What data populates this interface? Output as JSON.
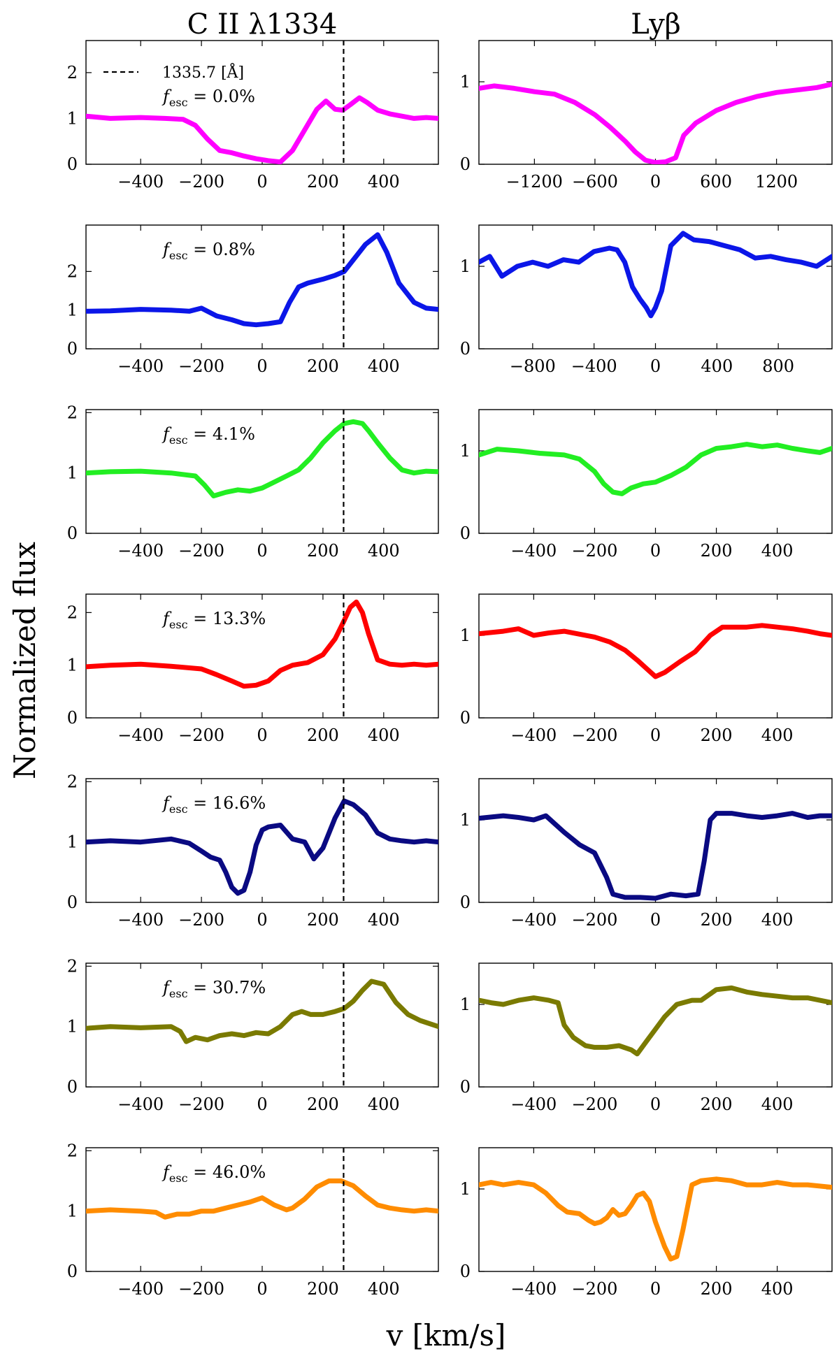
{
  "figure": {
    "left_column_title": "C II λ1334",
    "right_column_title": "Lyβ",
    "ylabel": "Normalized flux",
    "xlabel": "v [km/s]",
    "reference_line": {
      "velocity": 268,
      "legend_label": "1335.7 [Å]"
    },
    "fesc_prefix": "f",
    "fesc_subscript": "esc"
  },
  "chart_data": [
    {
      "type": "line",
      "panel": "C II λ1334",
      "fesc": "0.0%",
      "color": "#ff00ff",
      "xlim": [
        -580,
        580
      ],
      "ylim": [
        0,
        2.7
      ],
      "xticks": [
        -400,
        -200,
        0,
        200,
        400
      ],
      "yticks": [
        0,
        1,
        2
      ],
      "x": [
        -580,
        -500,
        -400,
        -320,
        -260,
        -220,
        -180,
        -140,
        -100,
        -60,
        -20,
        20,
        60,
        100,
        140,
        180,
        210,
        240,
        265,
        290,
        320,
        345,
        380,
        420,
        460,
        500,
        540,
        580
      ],
      "y": [
        1.05,
        1.0,
        1.02,
        1.0,
        0.98,
        0.85,
        0.55,
        0.3,
        0.25,
        0.18,
        0.12,
        0.08,
        0.05,
        0.3,
        0.75,
        1.2,
        1.38,
        1.2,
        1.18,
        1.3,
        1.45,
        1.35,
        1.18,
        1.1,
        1.05,
        1.0,
        1.02,
        1.0
      ]
    },
    {
      "type": "line",
      "panel": "Lyβ",
      "fesc": "0.0%",
      "color": "#ff00ff",
      "xlim": [
        -1750,
        1750
      ],
      "ylim": [
        0,
        1.5
      ],
      "xticks": [
        -1200,
        -600,
        0,
        600,
        1200
      ],
      "yticks": [
        0,
        1
      ],
      "x": [
        -1750,
        -1600,
        -1400,
        -1200,
        -1000,
        -800,
        -600,
        -450,
        -300,
        -200,
        -100,
        0,
        100,
        200,
        280,
        400,
        600,
        800,
        1000,
        1200,
        1400,
        1600,
        1750
      ],
      "y": [
        0.92,
        0.95,
        0.92,
        0.88,
        0.85,
        0.75,
        0.6,
        0.45,
        0.28,
        0.15,
        0.05,
        0.02,
        0.03,
        0.08,
        0.35,
        0.5,
        0.65,
        0.75,
        0.82,
        0.87,
        0.9,
        0.93,
        0.97
      ]
    },
    {
      "type": "line",
      "panel": "C II λ1334",
      "fesc": "0.8%",
      "color": "#0b16e8",
      "xlim": [
        -580,
        580
      ],
      "ylim": [
        0,
        3.2
      ],
      "xticks": [
        -400,
        -200,
        0,
        200,
        400
      ],
      "yticks": [
        0,
        1,
        2
      ],
      "x": [
        -580,
        -500,
        -400,
        -300,
        -240,
        -200,
        -150,
        -100,
        -60,
        -20,
        20,
        60,
        90,
        120,
        150,
        200,
        240,
        270,
        300,
        340,
        380,
        410,
        450,
        500,
        540,
        580
      ],
      "y": [
        0.97,
        0.98,
        1.02,
        1.0,
        0.97,
        1.05,
        0.85,
        0.75,
        0.65,
        0.62,
        0.65,
        0.7,
        1.2,
        1.6,
        1.7,
        1.8,
        1.9,
        2.0,
        2.3,
        2.7,
        2.95,
        2.5,
        1.7,
        1.2,
        1.05,
        1.02
      ]
    },
    {
      "type": "line",
      "panel": "Lyβ",
      "fesc": "0.8%",
      "color": "#0b16e8",
      "xlim": [
        -1150,
        1150
      ],
      "ylim": [
        0,
        1.5
      ],
      "xticks": [
        -800,
        -400,
        0,
        400,
        800
      ],
      "yticks": [
        0,
        1
      ],
      "x": [
        -1150,
        -1080,
        -1000,
        -900,
        -800,
        -700,
        -600,
        -500,
        -400,
        -300,
        -250,
        -200,
        -150,
        -100,
        -60,
        -30,
        0,
        40,
        100,
        180,
        250,
        350,
        450,
        550,
        650,
        750,
        850,
        950,
        1050,
        1150
      ],
      "y": [
        1.05,
        1.12,
        0.88,
        1.0,
        1.05,
        1.0,
        1.08,
        1.05,
        1.18,
        1.22,
        1.2,
        1.05,
        0.75,
        0.6,
        0.5,
        0.4,
        0.5,
        0.7,
        1.25,
        1.4,
        1.32,
        1.3,
        1.25,
        1.2,
        1.1,
        1.12,
        1.08,
        1.05,
        1.0,
        1.12
      ]
    },
    {
      "type": "line",
      "panel": "C II λ1334",
      "fesc": "4.1%",
      "color": "#22ee22",
      "xlim": [
        -580,
        580
      ],
      "ylim": [
        0,
        2.05
      ],
      "xticks": [
        -400,
        -200,
        0,
        200,
        400
      ],
      "yticks": [
        0,
        1,
        2
      ],
      "x": [
        -580,
        -500,
        -400,
        -300,
        -220,
        -190,
        -160,
        -120,
        -80,
        -40,
        0,
        40,
        80,
        120,
        160,
        200,
        240,
        270,
        300,
        330,
        350,
        380,
        420,
        460,
        500,
        540,
        580
      ],
      "y": [
        1.0,
        1.02,
        1.03,
        1.0,
        0.95,
        0.8,
        0.62,
        0.68,
        0.72,
        0.7,
        0.75,
        0.85,
        0.95,
        1.05,
        1.25,
        1.5,
        1.7,
        1.82,
        1.85,
        1.82,
        1.7,
        1.5,
        1.25,
        1.05,
        1.0,
        1.03,
        1.02
      ]
    },
    {
      "type": "line",
      "panel": "Lyβ",
      "fesc": "4.1%",
      "color": "#22ee22",
      "xlim": [
        -580,
        580
      ],
      "ylim": [
        0,
        1.5
      ],
      "xticks": [
        -400,
        -200,
        0,
        200,
        400
      ],
      "yticks": [
        0,
        1
      ],
      "x": [
        -580,
        -520,
        -450,
        -380,
        -300,
        -250,
        -200,
        -170,
        -140,
        -110,
        -80,
        -40,
        0,
        50,
        100,
        150,
        200,
        250,
        300,
        350,
        400,
        450,
        500,
        540,
        580
      ],
      "y": [
        0.95,
        1.02,
        1.0,
        0.97,
        0.95,
        0.9,
        0.75,
        0.6,
        0.5,
        0.48,
        0.55,
        0.6,
        0.62,
        0.7,
        0.8,
        0.95,
        1.03,
        1.05,
        1.08,
        1.05,
        1.07,
        1.03,
        1.0,
        0.98,
        1.03
      ]
    },
    {
      "type": "line",
      "panel": "C II λ1334",
      "fesc": "13.3%",
      "color": "#ff0000",
      "xlim": [
        -580,
        580
      ],
      "ylim": [
        0,
        2.35
      ],
      "xticks": [
        -400,
        -200,
        0,
        200,
        400
      ],
      "yticks": [
        0,
        1,
        2
      ],
      "x": [
        -580,
        -500,
        -400,
        -300,
        -200,
        -150,
        -100,
        -60,
        -20,
        20,
        60,
        100,
        150,
        200,
        240,
        270,
        290,
        310,
        330,
        350,
        380,
        420,
        460,
        500,
        540,
        580
      ],
      "y": [
        0.97,
        1.0,
        1.02,
        0.98,
        0.93,
        0.82,
        0.7,
        0.6,
        0.62,
        0.7,
        0.9,
        1.0,
        1.05,
        1.2,
        1.5,
        1.85,
        2.1,
        2.2,
        2.0,
        1.6,
        1.1,
        1.02,
        1.0,
        1.02,
        1.0,
        1.02
      ]
    },
    {
      "type": "line",
      "panel": "Lyβ",
      "fesc": "13.3%",
      "color": "#ff0000",
      "xlim": [
        -580,
        580
      ],
      "ylim": [
        0,
        1.5
      ],
      "xticks": [
        -400,
        -200,
        0,
        200,
        400
      ],
      "yticks": [
        0,
        1
      ],
      "x": [
        -580,
        -500,
        -450,
        -400,
        -350,
        -300,
        -200,
        -150,
        -100,
        -60,
        -30,
        0,
        30,
        80,
        130,
        180,
        220,
        300,
        350,
        400,
        450,
        500,
        540,
        580
      ],
      "y": [
        1.02,
        1.05,
        1.08,
        1.0,
        1.03,
        1.05,
        0.98,
        0.92,
        0.82,
        0.7,
        0.6,
        0.5,
        0.55,
        0.68,
        0.8,
        1.0,
        1.1,
        1.1,
        1.12,
        1.1,
        1.08,
        1.05,
        1.02,
        1.0
      ]
    },
    {
      "type": "line",
      "panel": "C II λ1334",
      "fesc": "16.6%",
      "color": "#0a0a82",
      "xlim": [
        -580,
        580
      ],
      "ylim": [
        0,
        2.05
      ],
      "xticks": [
        -400,
        -200,
        0,
        200,
        400
      ],
      "yticks": [
        0,
        1,
        2
      ],
      "x": [
        -580,
        -500,
        -400,
        -300,
        -240,
        -200,
        -170,
        -140,
        -120,
        -100,
        -80,
        -60,
        -40,
        -20,
        0,
        20,
        60,
        100,
        140,
        170,
        200,
        240,
        270,
        300,
        340,
        380,
        420,
        460,
        500,
        540,
        580
      ],
      "y": [
        1.0,
        1.02,
        1.0,
        1.05,
        0.98,
        0.85,
        0.75,
        0.7,
        0.5,
        0.25,
        0.15,
        0.2,
        0.5,
        0.95,
        1.2,
        1.25,
        1.28,
        1.05,
        1.0,
        0.72,
        0.9,
        1.4,
        1.68,
        1.62,
        1.45,
        1.15,
        1.05,
        1.02,
        1.0,
        1.02,
        1.0
      ]
    },
    {
      "type": "line",
      "panel": "Lyβ",
      "fesc": "16.6%",
      "color": "#0a0a82",
      "xlim": [
        -580,
        580
      ],
      "ylim": [
        0,
        1.5
      ],
      "xticks": [
        -400,
        -200,
        0,
        200,
        400
      ],
      "yticks": [
        0,
        1
      ],
      "x": [
        -580,
        -500,
        -450,
        -400,
        -360,
        -300,
        -250,
        -200,
        -160,
        -140,
        -100,
        -50,
        0,
        50,
        100,
        140,
        160,
        180,
        200,
        250,
        300,
        350,
        400,
        450,
        500,
        540,
        580
      ],
      "y": [
        1.02,
        1.05,
        1.03,
        1.0,
        1.05,
        0.85,
        0.7,
        0.6,
        0.3,
        0.1,
        0.06,
        0.06,
        0.05,
        0.1,
        0.08,
        0.1,
        0.5,
        1.0,
        1.08,
        1.08,
        1.05,
        1.03,
        1.05,
        1.08,
        1.03,
        1.05,
        1.05
      ]
    },
    {
      "type": "line",
      "panel": "C II λ1334",
      "fesc": "30.7%",
      "color": "#7a7a00",
      "xlim": [
        -580,
        580
      ],
      "ylim": [
        0,
        2.05
      ],
      "xticks": [
        -400,
        -200,
        0,
        200,
        400
      ],
      "yticks": [
        0,
        1,
        2
      ],
      "x": [
        -580,
        -500,
        -400,
        -300,
        -270,
        -250,
        -220,
        -180,
        -140,
        -100,
        -60,
        -20,
        20,
        60,
        100,
        130,
        160,
        200,
        240,
        270,
        300,
        330,
        360,
        400,
        440,
        480,
        520,
        580
      ],
      "y": [
        0.97,
        1.0,
        0.98,
        1.0,
        0.92,
        0.75,
        0.82,
        0.78,
        0.85,
        0.88,
        0.85,
        0.9,
        0.88,
        1.0,
        1.2,
        1.25,
        1.2,
        1.2,
        1.25,
        1.3,
        1.42,
        1.6,
        1.75,
        1.7,
        1.4,
        1.2,
        1.1,
        1.0
      ]
    },
    {
      "type": "line",
      "panel": "Lyβ",
      "fesc": "30.7%",
      "color": "#7a7a00",
      "xlim": [
        -580,
        580
      ],
      "ylim": [
        0,
        1.5
      ],
      "xticks": [
        -400,
        -200,
        0,
        200,
        400
      ],
      "yticks": [
        0,
        1
      ],
      "x": [
        -580,
        -540,
        -500,
        -450,
        -400,
        -350,
        -320,
        -300,
        -270,
        -230,
        -200,
        -160,
        -120,
        -80,
        -60,
        -30,
        0,
        30,
        70,
        120,
        150,
        200,
        250,
        300,
        350,
        400,
        450,
        500,
        540,
        580
      ],
      "y": [
        1.05,
        1.02,
        1.0,
        1.05,
        1.08,
        1.05,
        1.02,
        0.75,
        0.6,
        0.5,
        0.48,
        0.48,
        0.5,
        0.45,
        0.4,
        0.55,
        0.7,
        0.85,
        1.0,
        1.05,
        1.05,
        1.18,
        1.2,
        1.15,
        1.12,
        1.1,
        1.08,
        1.08,
        1.05,
        1.02
      ]
    },
    {
      "type": "line",
      "panel": "C II λ1334",
      "fesc": "46.0%",
      "color": "#ff8c00",
      "xlim": [
        -580,
        580
      ],
      "ylim": [
        0,
        2.05
      ],
      "xticks": [
        -400,
        -200,
        0,
        200,
        400
      ],
      "yticks": [
        0,
        1,
        2
      ],
      "x": [
        -580,
        -500,
        -400,
        -350,
        -320,
        -280,
        -240,
        -200,
        -160,
        -120,
        -80,
        -40,
        0,
        40,
        80,
        100,
        140,
        180,
        220,
        260,
        300,
        340,
        380,
        420,
        460,
        500,
        540,
        580
      ],
      "y": [
        1.0,
        1.02,
        1.0,
        0.98,
        0.9,
        0.95,
        0.95,
        1.0,
        1.0,
        1.05,
        1.1,
        1.15,
        1.22,
        1.1,
        1.02,
        1.05,
        1.2,
        1.4,
        1.5,
        1.5,
        1.42,
        1.25,
        1.1,
        1.05,
        1.02,
        1.0,
        1.02,
        1.0
      ]
    },
    {
      "type": "line",
      "panel": "Lyβ",
      "fesc": "46.0%",
      "color": "#ff8c00",
      "xlim": [
        -580,
        580
      ],
      "ylim": [
        0,
        1.5
      ],
      "xticks": [
        -400,
        -200,
        0,
        200,
        400
      ],
      "yticks": [
        0,
        1
      ],
      "x": [
        -580,
        -540,
        -500,
        -450,
        -400,
        -360,
        -320,
        -290,
        -250,
        -220,
        -200,
        -180,
        -160,
        -140,
        -120,
        -100,
        -80,
        -60,
        -40,
        -20,
        0,
        30,
        50,
        70,
        90,
        120,
        150,
        200,
        250,
        300,
        350,
        400,
        450,
        500,
        580
      ],
      "y": [
        1.05,
        1.08,
        1.05,
        1.08,
        1.05,
        0.95,
        0.8,
        0.72,
        0.7,
        0.62,
        0.58,
        0.6,
        0.65,
        0.75,
        0.68,
        0.7,
        0.8,
        0.92,
        0.95,
        0.85,
        0.6,
        0.3,
        0.15,
        0.18,
        0.5,
        1.05,
        1.1,
        1.12,
        1.1,
        1.05,
        1.05,
        1.08,
        1.05,
        1.05,
        1.02
      ]
    }
  ]
}
